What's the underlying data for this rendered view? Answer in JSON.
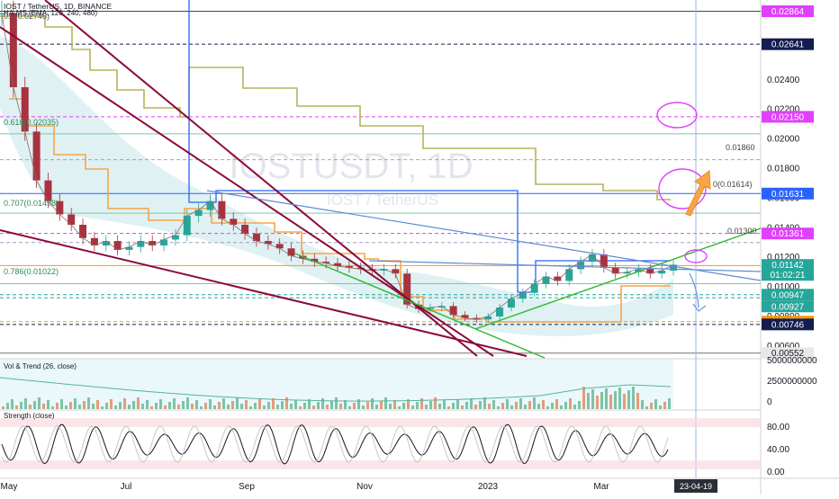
{
  "header": {
    "symbol_line": "IOST / TetherUS, 1D, BINANCE",
    "ma_line": "HA-MS (EMA, 120, 240, 480)",
    "fib_top": "0.5(0.02746)"
  },
  "watermark": {
    "symbol": "IOSTUSDT, 1D",
    "pair": "IOST / TetherUS"
  },
  "fib_levels": [
    {
      "label": "0.618(0.02035)",
      "value": 0.02035
    },
    {
      "label": "0.707(0.01498)",
      "value": 0.01498
    },
    {
      "label": "0.786(0.01022)",
      "value": 0.01022
    }
  ],
  "colors": {
    "magenta": "#e040fb",
    "navy": "#131d4f",
    "orange": "#ff9800",
    "green": "#26a69a",
    "blue": "#2962ff",
    "trendline_maroon": "#8b0a3a",
    "trendline_green": "#2eb82e",
    "trendline_blue": "#5b8bd6"
  },
  "chart_data": {
    "type": "candlestick",
    "y_scale": "linear",
    "ylim": [
      0.0052,
      0.0294
    ],
    "x_ticks": [
      "May",
      "Jul",
      "Sep",
      "Nov",
      "2023",
      "Mar"
    ],
    "y_ticks": [
      "0.02400",
      "0.02200",
      "0.02000",
      "0.01800",
      "0.01600",
      "0.01400",
      "0.01200",
      "0.01000",
      "0.00800",
      "0.00600"
    ],
    "annotations": [
      "0.01860",
      "0.01300",
      "0(0.01614)"
    ],
    "price_labels": [
      {
        "text": "0.02864",
        "value": 0.02864,
        "color": "#e040fb",
        "style": "magenta"
      },
      {
        "text": "0.02641",
        "value": 0.02641,
        "color": "#131d4f",
        "style": "navy"
      },
      {
        "text": "0.02150",
        "value": 0.0215,
        "color": "#e040fb",
        "style": "magenta"
      },
      {
        "text": "0.01631",
        "value": 0.01631,
        "color": "#2962ff",
        "style": "blue"
      },
      {
        "text": "0.01361",
        "value": 0.01361,
        "color": "#e040fb",
        "style": "magenta"
      },
      {
        "text": "0.01144",
        "value": 0.01144,
        "color": "#ff9800",
        "style": "orange"
      },
      {
        "text": "0.01142",
        "value": 0.01142,
        "color": "#26a69a",
        "style": "green"
      },
      {
        "text": "01:02:21",
        "value": 0.01054,
        "color": "#26a69a",
        "style": "green"
      },
      {
        "text": "0.00947",
        "value": 0.00947,
        "color": "#26a69a",
        "style": "green"
      },
      {
        "text": "0.00927",
        "value": 0.00927,
        "color": "#26a69a",
        "style": "green"
      },
      {
        "text": "0.00765",
        "value": 0.00765,
        "color": "#ff9800",
        "style": "orange"
      },
      {
        "text": "0.00746",
        "value": 0.00746,
        "color": "#131d4f",
        "style": "navy"
      },
      {
        "text": "0.00552",
        "value": 0.00552,
        "color": "#707070",
        "style": "gray"
      }
    ],
    "horizontal_levels": [
      {
        "value": 0.02864,
        "color": "#444444",
        "dash": false
      },
      {
        "value": 0.02641,
        "color": "#131d4f",
        "dash": true
      },
      {
        "value": 0.0215,
        "color": "#e040fb",
        "dash": true
      },
      {
        "value": 0.02035,
        "color": "#7ec8a0",
        "dash": false
      },
      {
        "value": 0.0186,
        "color": "#a0a0c0",
        "dash": true
      },
      {
        "value": 0.01631,
        "color": "#2962ff",
        "dash": false
      },
      {
        "value": 0.01498,
        "color": "#7ec8a0",
        "dash": false
      },
      {
        "value": 0.01361,
        "color": "#e040fb",
        "dash": true
      },
      {
        "value": 0.013,
        "color": "#a0a0c0",
        "dash": true
      },
      {
        "value": 0.01144,
        "color": "#ff9800",
        "dash": false
      },
      {
        "value": 0.01022,
        "color": "#7ec8a0",
        "dash": false
      },
      {
        "value": 0.00947,
        "color": "#26a69a",
        "dash": true
      },
      {
        "value": 0.00927,
        "color": "#26a69a",
        "dash": true
      },
      {
        "value": 0.00765,
        "color": "#ff9800",
        "dash": true
      },
      {
        "value": 0.00746,
        "color": "#131d4f",
        "dash": true
      },
      {
        "value": 0.00552,
        "color": "#707070",
        "dash": false
      }
    ],
    "close_series": [
      0.0285,
      0.0235,
      0.0205,
      0.0172,
      0.0158,
      0.0149,
      0.0142,
      0.0133,
      0.0128,
      0.0131,
      0.0125,
      0.0127,
      0.0131,
      0.0128,
      0.0132,
      0.0135,
      0.0148,
      0.0152,
      0.0158,
      0.0146,
      0.0142,
      0.0136,
      0.0131,
      0.0129,
      0.0126,
      0.0121,
      0.0119,
      0.0117,
      0.0116,
      0.0114,
      0.0113,
      0.0112,
      0.0111,
      0.0112,
      0.0109,
      0.0088,
      0.0085,
      0.0086,
      0.0087,
      0.0081,
      0.0079,
      0.0078,
      0.008,
      0.0086,
      0.0092,
      0.0096,
      0.0102,
      0.0107,
      0.0104,
      0.0112,
      0.0117,
      0.0122,
      0.0113,
      0.0109,
      0.011,
      0.0112,
      0.0109,
      0.0111,
      0.0115
    ],
    "volume_y_ticks": [
      "5000000000",
      "2500000000",
      "0"
    ],
    "strength_y_ticks": [
      "80.00",
      "40.00",
      "0.00"
    ],
    "date_marker": "23-04-19"
  },
  "panes": {
    "volume_title": "Vol & Trend (26, close)",
    "strength_title": "Strength (close)"
  }
}
